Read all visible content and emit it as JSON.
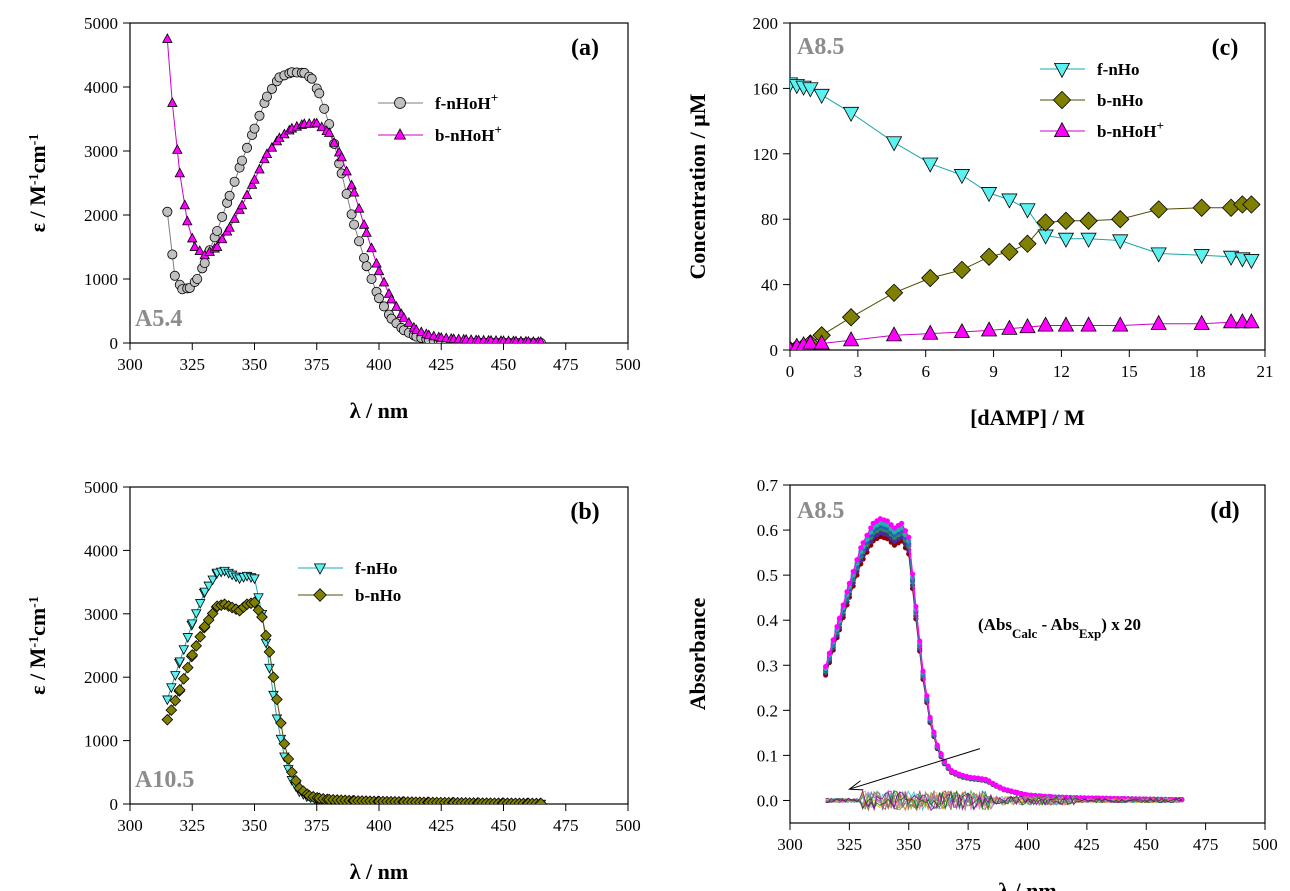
{
  "chart_data": [
    {
      "panel": "(a)",
      "type": "scatter",
      "condition": "A5.4",
      "xlabel": "λ / nm",
      "ylabel": "ε / M-1cm-1",
      "ylabel_parts": {
        "base": "ε / M",
        "sup1": "-1",
        "mid": "cm",
        "sup2": "-1"
      },
      "xlim": [
        300,
        500
      ],
      "ylim": [
        0,
        5000
      ],
      "xticks": [
        300,
        325,
        350,
        375,
        400,
        425,
        450,
        475,
        500
      ],
      "yticks": [
        0,
        1000,
        2000,
        3000,
        4000,
        5000
      ],
      "legend_position": "upper-right",
      "series": [
        {
          "name": "f-nHoH+",
          "name_parts": {
            "base": "f-nHoH",
            "sup": "+"
          },
          "marker": "circle",
          "fill": "#c0c0c0",
          "line": "#7f7f7f",
          "x": [
            315,
            318,
            321,
            324,
            327,
            330,
            335,
            340,
            345,
            350,
            355,
            360,
            365,
            370,
            373,
            376,
            380,
            385,
            390,
            395,
            400,
            405,
            410,
            415,
            420,
            425,
            430,
            435,
            440,
            445,
            450,
            455,
            460,
            465
          ],
          "y": [
            2050,
            1050,
            840,
            860,
            1000,
            1250,
            1750,
            2300,
            2850,
            3350,
            3850,
            4150,
            4230,
            4220,
            4130,
            3900,
            3420,
            2650,
            1850,
            1200,
            700,
            380,
            200,
            100,
            50,
            25,
            15,
            10,
            8,
            6,
            5,
            4,
            3,
            2
          ]
        },
        {
          "name": "b-nHoH+",
          "name_parts": {
            "base": "b-nHoH",
            "sup": "+"
          },
          "marker": "triangle-up",
          "fill": "#ff00ff",
          "line": "#cc00cc",
          "x": [
            315,
            317,
            320,
            323,
            326,
            330,
            335,
            340,
            345,
            350,
            355,
            360,
            365,
            370,
            375,
            380,
            385,
            390,
            395,
            400,
            405,
            410,
            415,
            420,
            425,
            430,
            435,
            440,
            445,
            450,
            455,
            460,
            465
          ],
          "y": [
            4750,
            3750,
            2650,
            1900,
            1500,
            1370,
            1500,
            1800,
            2150,
            2550,
            2950,
            3200,
            3350,
            3420,
            3430,
            3280,
            2900,
            2350,
            1720,
            1120,
            680,
            390,
            200,
            120,
            80,
            60,
            50,
            40,
            35,
            30,
            25,
            20,
            15
          ]
        }
      ]
    },
    {
      "panel": "(b)",
      "type": "scatter",
      "condition": "A10.5",
      "xlabel": "λ / nm",
      "ylabel": "ε / M-1cm-1",
      "ylabel_parts": {
        "base": "ε / M",
        "sup1": "-1",
        "mid": "cm",
        "sup2": "-1"
      },
      "xlim": [
        300,
        500
      ],
      "ylim": [
        0,
        5000
      ],
      "xticks": [
        300,
        325,
        350,
        375,
        400,
        425,
        450,
        475,
        500
      ],
      "yticks": [
        0,
        1000,
        2000,
        3000,
        4000,
        5000
      ],
      "legend_position": "upper-right",
      "series": [
        {
          "name": "f-nHo",
          "marker": "triangle-down",
          "fill": "#5cf0f0",
          "line": "#1aa7a7",
          "x": [
            315,
            320,
            325,
            330,
            335,
            338,
            341,
            344,
            347,
            350,
            353,
            356,
            359,
            362,
            365,
            368,
            371,
            375,
            380,
            390,
            400,
            410,
            420,
            430,
            440,
            450,
            460,
            465
          ],
          "y": [
            1650,
            2250,
            2850,
            3350,
            3650,
            3680,
            3620,
            3560,
            3600,
            3560,
            3000,
            2150,
            1350,
            750,
            380,
            200,
            120,
            80,
            50,
            35,
            25,
            20,
            15,
            12,
            10,
            8,
            6,
            5
          ],
          "step": 1.6
        },
        {
          "name": "b-nHo",
          "marker": "diamond",
          "fill": "#808000",
          "line": "#4d4d00",
          "x": [
            315,
            320,
            325,
            330,
            335,
            338,
            341,
            344,
            347,
            350,
            353,
            356,
            359,
            362,
            365,
            368,
            372,
            376,
            380,
            390,
            400,
            410,
            420,
            430,
            440,
            450,
            460,
            465
          ],
          "y": [
            1330,
            1800,
            2350,
            2800,
            3120,
            3150,
            3100,
            3050,
            3150,
            3180,
            2950,
            2400,
            1650,
            950,
            500,
            250,
            130,
            90,
            70,
            50,
            40,
            32,
            25,
            20,
            15,
            12,
            10,
            8
          ],
          "step": 1.6
        }
      ]
    },
    {
      "panel": "(c)",
      "type": "line",
      "condition": "A8.5",
      "xlabel": "[dAMP] / M",
      "ylabel": "Concentration / μM",
      "xlim": [
        0,
        21
      ],
      "ylim": [
        0,
        200
      ],
      "xticks": [
        0,
        3,
        6,
        9,
        12,
        15,
        18,
        21
      ],
      "yticks": [
        0,
        40,
        80,
        120,
        160,
        200
      ],
      "legend_position": "upper-right",
      "series": [
        {
          "name": "f-nHo",
          "marker": "triangle-down",
          "fill": "#5cf0f0",
          "line": "#1aa7a7",
          "x": [
            0,
            0.3,
            0.6,
            0.9,
            1.4,
            2.7,
            4.6,
            6.2,
            7.6,
            8.8,
            9.7,
            10.5,
            11.3,
            12.2,
            13.2,
            14.6,
            16.3,
            18.2,
            19.5,
            20.0,
            20.4
          ],
          "y": [
            163,
            162,
            161,
            160,
            156,
            145,
            127,
            114,
            107,
            96,
            92,
            86,
            70,
            68,
            68,
            67,
            59,
            58,
            57,
            56,
            55
          ]
        },
        {
          "name": "b-nHo",
          "marker": "diamond",
          "fill": "#808000",
          "line": "#4d4d00",
          "x": [
            0,
            0.3,
            0.6,
            0.9,
            1.4,
            2.7,
            4.6,
            6.2,
            7.6,
            8.8,
            9.7,
            10.5,
            11.3,
            12.2,
            13.2,
            14.6,
            16.3,
            18.2,
            19.5,
            20.0,
            20.4
          ],
          "y": [
            0,
            1,
            2,
            4,
            9,
            20,
            35,
            44,
            49,
            57,
            60,
            65,
            78,
            79,
            79,
            80,
            86,
            87,
            87,
            89,
            89
          ]
        },
        {
          "name": "b-nHoH+",
          "name_parts": {
            "base": "b-nHoH",
            "sup": "+"
          },
          "marker": "triangle-up",
          "fill": "#ff00ff",
          "line": "#cc00cc",
          "x": [
            0,
            0.3,
            0.6,
            0.9,
            1.4,
            2.7,
            4.6,
            6.2,
            7.6,
            8.8,
            9.7,
            10.5,
            11.3,
            12.2,
            13.2,
            14.6,
            16.3,
            18.2,
            19.5,
            20.0,
            20.4
          ],
          "y": [
            0,
            2,
            3,
            4,
            4,
            6,
            9,
            10,
            11,
            12,
            13,
            14,
            15,
            15,
            15,
            15,
            16,
            16,
            17,
            17,
            17
          ]
        }
      ]
    },
    {
      "panel": "(d)",
      "type": "line",
      "condition": "A8.5",
      "xlabel": "λ / nm",
      "ylabel": "Absorbance",
      "xlim": [
        300,
        500
      ],
      "ylim": [
        -0.05,
        0.7
      ],
      "xticks": [
        300,
        325,
        350,
        375,
        400,
        425,
        450,
        475,
        500
      ],
      "yticks": [
        0.0,
        0.1,
        0.2,
        0.3,
        0.4,
        0.5,
        0.6,
        0.7
      ],
      "annotation": {
        "text": "(AbsCalc - AbsExp) x 20",
        "parts": {
          "a": "(Abs",
          "s1": "Calc",
          "b": " - Abs",
          "s2": "Exp",
          "c": ") x 20"
        },
        "arrow_from": [
          380,
          0.115
        ],
        "arrow_to": [
          325,
          0.025
        ]
      },
      "base_spectrum": {
        "x": [
          315,
          320,
          325,
          330,
          335,
          338,
          341,
          344,
          347,
          350,
          353,
          356,
          359,
          362,
          365,
          368,
          372,
          376,
          380,
          383,
          386,
          390,
          395,
          400,
          405,
          410,
          420,
          430,
          440,
          450,
          460,
          465
        ],
        "y": [
          0.29,
          0.38,
          0.47,
          0.55,
          0.6,
          0.61,
          0.605,
          0.59,
          0.6,
          0.57,
          0.42,
          0.28,
          0.18,
          0.12,
          0.085,
          0.065,
          0.055,
          0.05,
          0.048,
          0.045,
          0.035,
          0.025,
          0.018,
          0.012,
          0.01,
          0.008,
          0.006,
          0.005,
          0.004,
          0.003,
          0.002,
          0.002
        ]
      },
      "series_scales": [
        0.96,
        0.975,
        0.99,
        1.0,
        1.01,
        1.025
      ],
      "series_colors": [
        "#8b0000",
        "#4b2aa0",
        "#2e8b57",
        "#1f5fbf",
        "#20b2aa",
        "#ff00ff"
      ]
    }
  ]
}
